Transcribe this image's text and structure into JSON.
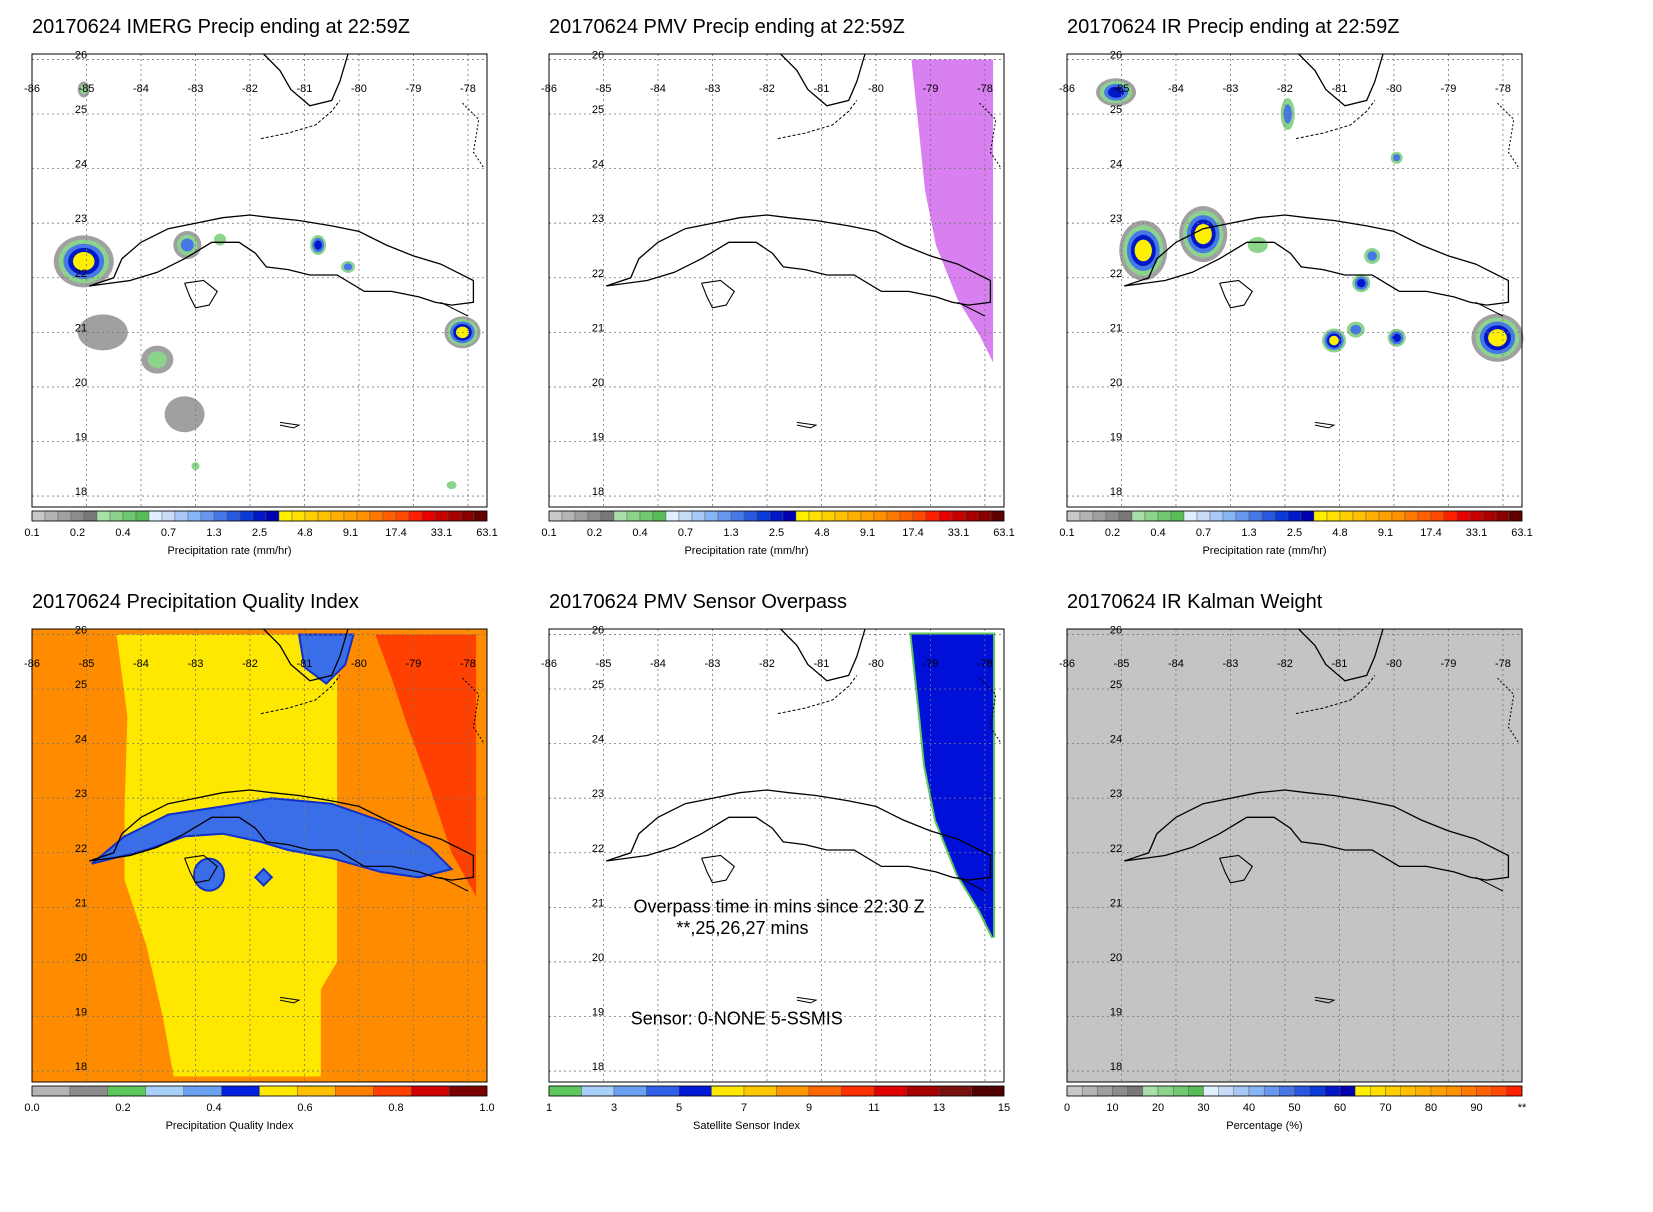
{
  "panels": [
    {
      "title": "20170624 IMERG Precip ending at 22:59Z",
      "colorbar": "precip",
      "overlay": "imerg"
    },
    {
      "title": "20170624 PMV Precip ending at 22:59Z",
      "colorbar": "precip",
      "overlay": "pmv"
    },
    {
      "title": "20170624 IR Precip ending at 22:59Z",
      "colorbar": "precip",
      "overlay": "ir"
    },
    {
      "title": "20170624 Precipitation Quality Index",
      "colorbar": "quality",
      "overlay": "quality"
    },
    {
      "title": "20170624 PMV Sensor Overpass",
      "colorbar": "sensor",
      "overlay": "sensor",
      "annotations": [
        "Overpass time in mins since 22:30 Z",
        "**,25,26,27 mins",
        "Sensor:   0-NONE  5-SSMIS"
      ]
    },
    {
      "title": "20170624 IR Kalman Weight",
      "colorbar": "percent",
      "overlay": "kalman"
    }
  ],
  "map_axes": {
    "lon_labels": [
      "-86",
      "-85",
      "-84",
      "-83",
      "-82",
      "-81",
      "-80",
      "-79",
      "-78"
    ],
    "lat_labels": [
      "26",
      "25",
      "24",
      "23",
      "22",
      "21",
      "20",
      "19",
      "18"
    ]
  },
  "colorbars": {
    "precip": {
      "label": "Precipitation rate (mm/hr)",
      "ticks": [
        "0.1",
        "0.2",
        "0.4",
        "0.7",
        "1.3",
        "2.5",
        "4.8",
        "9.1",
        "17.4",
        "33.1",
        "63.1"
      ],
      "colors": [
        "#c8c8c8",
        "#b4b4b4",
        "#a0a0a0",
        "#8c8c8c",
        "#787878",
        "#a8e0a8",
        "#8cd48c",
        "#70c870",
        "#58bc58",
        "#e0f0ff",
        "#c8dcf8",
        "#a8c8f8",
        "#88b4f8",
        "#6898f0",
        "#4878e8",
        "#2858e0",
        "#0a3ad8",
        "#0018c8",
        "#0000b0",
        "#fff000",
        "#ffe000",
        "#ffd000",
        "#ffc000",
        "#ffb000",
        "#ffa000",
        "#ff9000",
        "#ff7800",
        "#ff6000",
        "#ff4800",
        "#ff2000",
        "#e80000",
        "#c80000",
        "#a80000",
        "#880000",
        "#600000"
      ]
    },
    "quality": {
      "label": "Precipitation Quality Index",
      "ticks": [
        "0.0",
        "0.2",
        "0.4",
        "0.6",
        "0.8",
        "1.0"
      ],
      "colors": [
        "#b4b4b4",
        "#8c8c8c",
        "#5ec85e",
        "#a8d0f8",
        "#6aa0f0",
        "#0020e0",
        "#ffe800",
        "#ffc000",
        "#ff8000",
        "#ff4000",
        "#d00000",
        "#7a0000"
      ]
    },
    "sensor": {
      "label": "Satellite Sensor Index",
      "ticks": [
        "1",
        "3",
        "5",
        "7",
        "9",
        "11",
        "13",
        "15"
      ],
      "colors": [
        "#5ec85e",
        "#a8d0f8",
        "#6aa0f0",
        "#3060e8",
        "#0018d8",
        "#ffe800",
        "#ffc800",
        "#ff9800",
        "#ff6800",
        "#ff3000",
        "#e00000",
        "#a80000",
        "#781010",
        "#500000"
      ]
    },
    "percent": {
      "label": "Percentage (%)",
      "ticks": [
        "0",
        "10",
        "20",
        "30",
        "40",
        "50",
        "60",
        "70",
        "80",
        "90",
        "**"
      ],
      "colors": [
        "#c8c8c8",
        "#b4b4b4",
        "#a0a0a0",
        "#8c8c8c",
        "#787878",
        "#a8e0a8",
        "#8cd48c",
        "#70c870",
        "#58bc58",
        "#e0f0ff",
        "#c8dcf8",
        "#a8c8f8",
        "#88b4f8",
        "#6898f0",
        "#4878e8",
        "#2858e0",
        "#0a3ad8",
        "#0018c8",
        "#0000b0",
        "#fff000",
        "#ffe000",
        "#ffd000",
        "#ffc000",
        "#ffb000",
        "#ffa000",
        "#ff9000",
        "#ff7800",
        "#ff6000",
        "#ff4800",
        "#ff2000"
      ]
    }
  },
  "chart_data": [
    {
      "type": "heatmap",
      "title": "20170624 IMERG Precip ending at 22:59Z",
      "xlabel": "",
      "ylabel": "",
      "xlim": [
        -86,
        -78
      ],
      "ylim": [
        18,
        26
      ],
      "colorbar_label": "Precipitation rate (mm/hr)"
    },
    {
      "type": "heatmap",
      "title": "20170624 PMV Precip ending at 22:59Z",
      "xlim": [
        -86,
        -78
      ],
      "ylim": [
        18,
        26
      ],
      "colorbar_label": "Precipitation rate (mm/hr)"
    },
    {
      "type": "heatmap",
      "title": "20170624 IR Precip ending at 22:59Z",
      "xlim": [
        -86,
        -78
      ],
      "ylim": [
        18,
        26
      ],
      "colorbar_label": "Precipitation rate (mm/hr)"
    },
    {
      "type": "heatmap",
      "title": "20170624 Precipitation Quality Index",
      "xlim": [
        -86,
        -78
      ],
      "ylim": [
        18,
        26
      ],
      "colorbar_label": "Precipitation Quality Index"
    },
    {
      "type": "heatmap",
      "title": "20170624 PMV Sensor Overpass",
      "xlim": [
        -86,
        -78
      ],
      "ylim": [
        18,
        26
      ],
      "colorbar_label": "Satellite Sensor Index"
    },
    {
      "type": "heatmap",
      "title": "20170624 IR Kalman Weight",
      "xlim": [
        -86,
        -78
      ],
      "ylim": [
        18,
        26
      ],
      "colorbar_label": "Percentage (%)"
    }
  ]
}
